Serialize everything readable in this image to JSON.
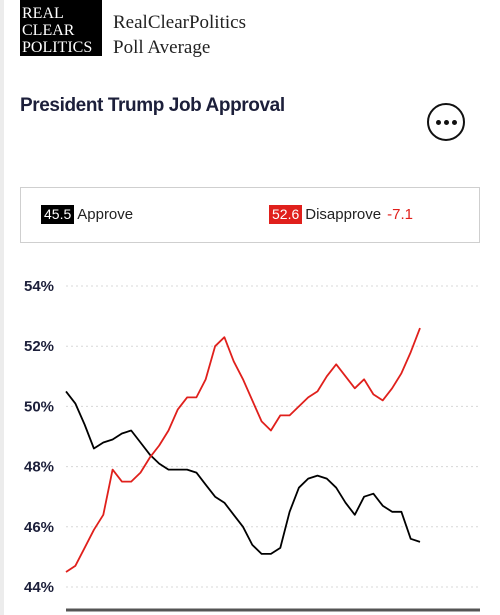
{
  "header": {
    "logo_lines": [
      "REAL",
      "CLEAR",
      "POLITICS"
    ],
    "brand_line1": "RealClearPolitics",
    "brand_line2": "Poll Average"
  },
  "title": "President Trump Job Approval",
  "more_icon": "ellipsis-icon",
  "legend": {
    "approve_value": "45.5",
    "approve_label": "Approve",
    "disapprove_value": "52.6",
    "disapprove_label": "Disapprove",
    "spread": "-7.1"
  },
  "colors": {
    "approve": "#000000",
    "disapprove": "#e0201c"
  },
  "chart_data": {
    "type": "line",
    "ylim": [
      44,
      54
    ],
    "yticks": [
      "54%",
      "52%",
      "50%",
      "48%",
      "46%",
      "44%"
    ],
    "ytick_values": [
      54,
      52,
      50,
      48,
      46,
      44
    ],
    "grid": true,
    "series": [
      {
        "name": "Approve",
        "color": "#000000",
        "values": [
          50.5,
          50.1,
          49.4,
          48.6,
          48.8,
          48.9,
          49.1,
          49.2,
          48.8,
          48.4,
          48.1,
          47.9,
          47.9,
          47.9,
          47.8,
          47.4,
          47.0,
          46.8,
          46.4,
          46.0,
          45.4,
          45.1,
          45.1,
          45.3,
          46.5,
          47.3,
          47.6,
          47.7,
          47.6,
          47.3,
          46.8,
          46.4,
          47.0,
          47.1,
          46.7,
          46.5,
          46.5,
          45.6,
          45.5
        ]
      },
      {
        "name": "Disapprove",
        "color": "#e0201c",
        "values": [
          44.5,
          44.7,
          45.3,
          45.9,
          46.4,
          47.9,
          47.5,
          47.5,
          47.8,
          48.3,
          48.7,
          49.2,
          49.9,
          50.3,
          50.3,
          50.9,
          52.0,
          52.3,
          51.5,
          50.9,
          50.2,
          49.5,
          49.2,
          49.7,
          49.7,
          50.0,
          50.3,
          50.5,
          51.0,
          51.4,
          51.0,
          50.6,
          50.9,
          50.4,
          50.2,
          50.6,
          51.1,
          51.8,
          52.6
        ]
      }
    ]
  }
}
